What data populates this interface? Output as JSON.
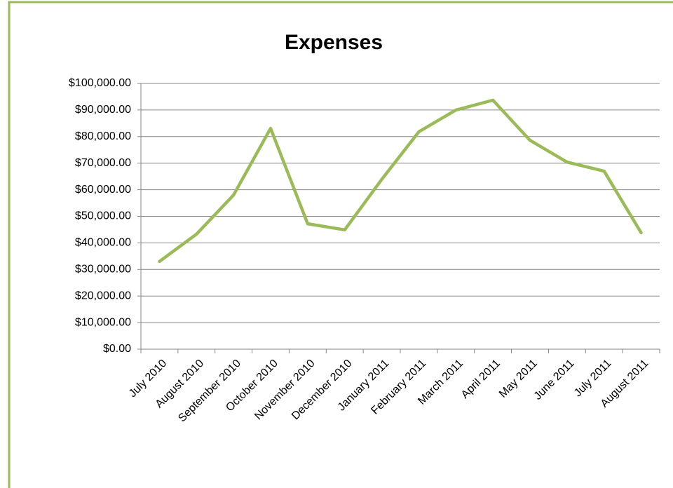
{
  "chart_data": {
    "type": "line",
    "title": "Expenses",
    "categories": [
      "July 2010",
      "August 2010",
      "September 2010",
      "October 2010",
      "November 2010",
      "December 2010",
      "January 2011",
      "February 2011",
      "March 2011",
      "April 2011",
      "May 2011",
      "June 2011",
      "July 2011",
      "August 2011"
    ],
    "series": [
      {
        "name": "Expenses",
        "color": "#9bbb59",
        "values": [
          33000,
          43300,
          58000,
          83100,
          47200,
          44900,
          63900,
          81800,
          90000,
          93700,
          78600,
          70400,
          67000,
          43800
        ]
      }
    ],
    "ylim": [
      0,
      100000
    ],
    "yticks": [
      {
        "value": 0,
        "label": "$0.00"
      },
      {
        "value": 10000,
        "label": "$10,000.00"
      },
      {
        "value": 20000,
        "label": "$20,000.00"
      },
      {
        "value": 30000,
        "label": "$30,000.00"
      },
      {
        "value": 40000,
        "label": "$40,000.00"
      },
      {
        "value": 50000,
        "label": "$50,000.00"
      },
      {
        "value": 60000,
        "label": "$60,000.00"
      },
      {
        "value": 70000,
        "label": "$70,000.00"
      },
      {
        "value": 80000,
        "label": "$80,000.00"
      },
      {
        "value": 90000,
        "label": "$90,000.00"
      },
      {
        "value": 100000,
        "label": "$100,000.00"
      }
    ],
    "grid": true
  }
}
